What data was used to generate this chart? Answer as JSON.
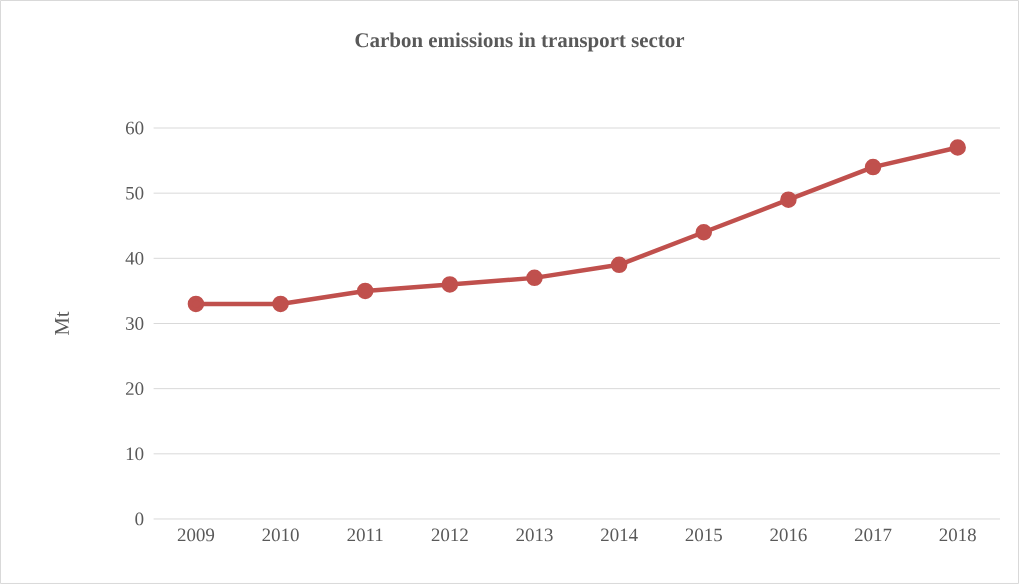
{
  "chart_data": {
    "type": "line",
    "title": "Carbon emissions in transport sector",
    "ylabel": "Mt",
    "categories": [
      "2009",
      "2010",
      "2011",
      "2012",
      "2013",
      "2014",
      "2015",
      "2016",
      "2017",
      "2018"
    ],
    "values": [
      33,
      33,
      35,
      36,
      37,
      39,
      44,
      49,
      54,
      57
    ],
    "color": "#c0504d",
    "marker": "circle",
    "ylim": [
      0,
      60
    ],
    "yticks": [
      0,
      10,
      20,
      30,
      40,
      50,
      60
    ],
    "grid": "y"
  }
}
